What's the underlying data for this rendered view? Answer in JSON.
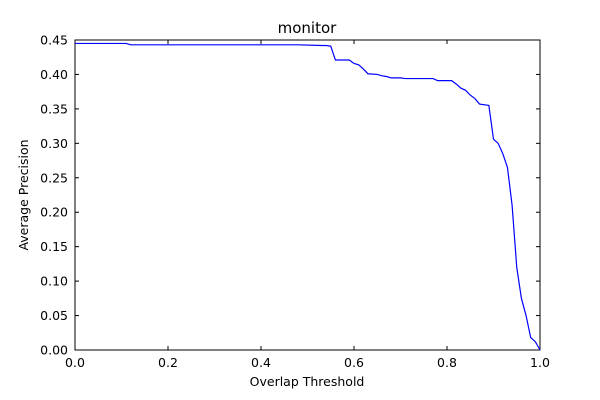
{
  "chart_data": {
    "type": "line",
    "title": "monitor",
    "xlabel": "Overlap Threshold",
    "ylabel": "Average Precision",
    "xlim": [
      0.0,
      1.0
    ],
    "ylim": [
      0.0,
      0.45
    ],
    "xticks": [
      0.0,
      0.2,
      0.4,
      0.6,
      0.8,
      1.0
    ],
    "xtick_labels": [
      "0.0",
      "0.2",
      "0.4",
      "0.6",
      "0.8",
      "1.0"
    ],
    "yticks": [
      0.0,
      0.05,
      0.1,
      0.15,
      0.2,
      0.25,
      0.3,
      0.35,
      0.4,
      0.45
    ],
    "ytick_labels": [
      "0.00",
      "0.05",
      "0.10",
      "0.15",
      "0.20",
      "0.25",
      "0.30",
      "0.35",
      "0.40",
      "0.45"
    ],
    "grid": false,
    "line_color": "#0000ff",
    "series": [
      {
        "x": [
          0.0,
          0.11,
          0.12,
          0.48,
          0.53,
          0.54,
          0.55,
          0.56,
          0.59,
          0.6,
          0.61,
          0.62,
          0.63,
          0.65,
          0.66,
          0.67,
          0.68,
          0.7,
          0.71,
          0.73,
          0.77,
          0.78,
          0.81,
          0.82,
          0.83,
          0.84,
          0.85,
          0.86,
          0.87,
          0.89,
          0.9,
          0.91,
          0.92,
          0.93,
          0.94,
          0.95,
          0.96,
          0.97,
          0.98,
          0.99,
          1.0
        ],
        "y": [
          0.445,
          0.445,
          0.443,
          0.443,
          0.442,
          0.442,
          0.441,
          0.421,
          0.421,
          0.416,
          0.414,
          0.408,
          0.401,
          0.4,
          0.398,
          0.397,
          0.395,
          0.395,
          0.394,
          0.394,
          0.394,
          0.391,
          0.391,
          0.386,
          0.38,
          0.377,
          0.37,
          0.365,
          0.357,
          0.355,
          0.306,
          0.3,
          0.285,
          0.265,
          0.21,
          0.12,
          0.075,
          0.05,
          0.018,
          0.012,
          0.0
        ]
      }
    ]
  }
}
